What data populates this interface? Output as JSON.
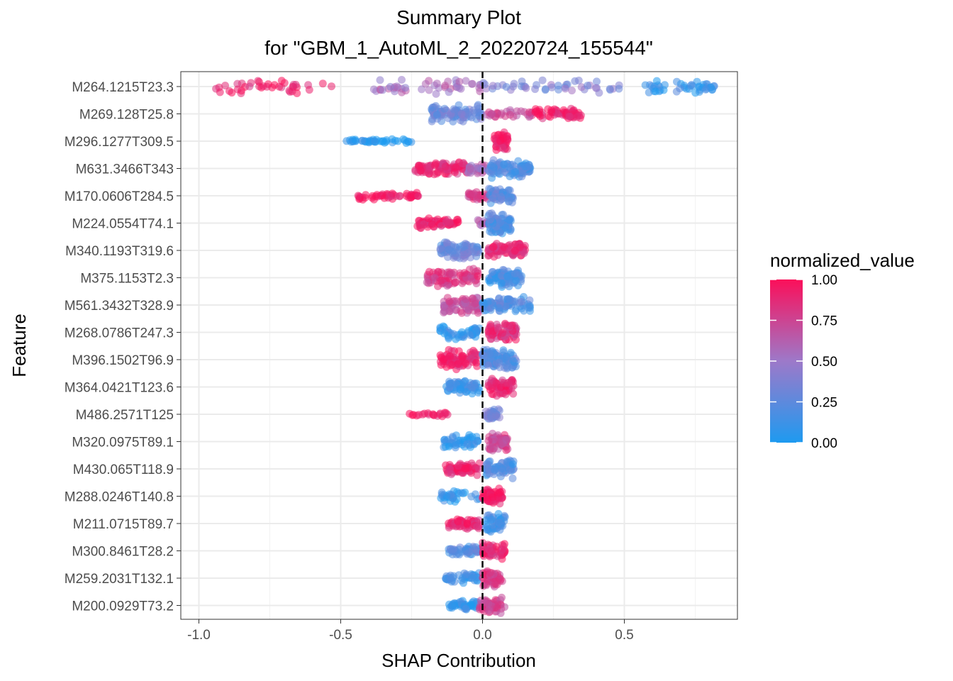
{
  "chart_data": {
    "type": "scatter",
    "subtype": "shap-summary-beeswarm",
    "title": "Summary Plot",
    "subtitle": "for \"GBM_1_AutoML_2_20220724_155544\"",
    "xlabel": "SHAP Contribution",
    "ylabel": "Feature",
    "xlim": [
      -1.05,
      0.9
    ],
    "x_ticks": [
      -1.0,
      -0.5,
      0.0,
      0.5
    ],
    "x_tick_labels": [
      "-1.0",
      "-0.5",
      "0.0",
      "0.5"
    ],
    "reference_line": 0.0,
    "grid": true,
    "features": [
      {
        "name": "M264.1215T23.3",
        "clusters": [
          [
            -0.98,
            -0.52,
            0.92,
            12,
            40
          ],
          [
            -0.4,
            0.0,
            0.55,
            12,
            45
          ],
          [
            0.0,
            0.5,
            0.4,
            10,
            45
          ],
          [
            0.55,
            0.82,
            0.1,
            10,
            45
          ]
        ]
      },
      {
        "name": "M269.128T25.8",
        "clusters": [
          [
            -0.18,
            0.0,
            0.3,
            14,
            90
          ],
          [
            0.0,
            0.18,
            0.75,
            6,
            30
          ],
          [
            0.18,
            0.35,
            0.95,
            8,
            60
          ]
        ]
      },
      {
        "name": "M296.1277T309.5",
        "clusters": [
          [
            -0.49,
            -0.25,
            0.02,
            3,
            40
          ],
          [
            0.04,
            0.09,
            0.96,
            14,
            40
          ]
        ]
      },
      {
        "name": "M631.3466T343",
        "clusters": [
          [
            -0.24,
            -0.05,
            0.88,
            10,
            90
          ],
          [
            -0.05,
            0.02,
            0.55,
            8,
            25
          ],
          [
            0.02,
            0.17,
            0.18,
            14,
            90
          ]
        ]
      },
      {
        "name": "M170.0606T284.5",
        "clusters": [
          [
            -0.44,
            -0.22,
            0.95,
            6,
            50
          ],
          [
            -0.05,
            0.02,
            0.8,
            8,
            30
          ],
          [
            0.02,
            0.11,
            0.22,
            12,
            60
          ]
        ]
      },
      {
        "name": "M224.0554T74.1",
        "clusters": [
          [
            -0.23,
            -0.08,
            0.92,
            8,
            60
          ],
          [
            -0.02,
            0.02,
            0.6,
            6,
            10
          ],
          [
            0.02,
            0.1,
            0.2,
            16,
            80
          ]
        ]
      },
      {
        "name": "M340.1193T319.6",
        "clusters": [
          [
            -0.15,
            -0.01,
            0.3,
            14,
            80
          ],
          [
            0.02,
            0.15,
            0.88,
            12,
            80
          ]
        ]
      },
      {
        "name": "M375.1153T2.3",
        "clusters": [
          [
            -0.2,
            -0.01,
            0.82,
            14,
            80
          ],
          [
            0.02,
            0.14,
            0.15,
            14,
            80
          ]
        ]
      },
      {
        "name": "M561.3432T328.9",
        "clusters": [
          [
            -0.14,
            0.0,
            0.7,
            14,
            70
          ],
          [
            0.0,
            0.17,
            0.2,
            12,
            80
          ]
        ]
      },
      {
        "name": "M268.0786T247.3",
        "clusters": [
          [
            -0.15,
            -0.01,
            0.08,
            12,
            50
          ],
          [
            0.02,
            0.12,
            0.85,
            14,
            70
          ]
        ]
      },
      {
        "name": "M396.1502T96.9",
        "clusters": [
          [
            -0.15,
            -0.01,
            0.92,
            16,
            80
          ],
          [
            0.0,
            0.12,
            0.22,
            16,
            90
          ]
        ]
      },
      {
        "name": "M364.0421T123.6",
        "clusters": [
          [
            -0.13,
            -0.01,
            0.15,
            12,
            60
          ],
          [
            0.02,
            0.11,
            0.9,
            14,
            60
          ]
        ]
      },
      {
        "name": "M486.2571T125",
        "clusters": [
          [
            -0.28,
            -0.12,
            0.97,
            4,
            20
          ],
          [
            0.01,
            0.06,
            0.3,
            10,
            40
          ]
        ]
      },
      {
        "name": "M320.0975T89.1",
        "clusters": [
          [
            -0.14,
            -0.01,
            0.05,
            10,
            45
          ],
          [
            0.02,
            0.09,
            0.78,
            14,
            60
          ]
        ]
      },
      {
        "name": "M430.065T118.9",
        "clusters": [
          [
            -0.13,
            -0.01,
            0.9,
            10,
            60
          ],
          [
            0.01,
            0.11,
            0.18,
            14,
            60
          ]
        ]
      },
      {
        "name": "M288.0246T140.8",
        "clusters": [
          [
            -0.15,
            -0.01,
            0.08,
            10,
            30
          ],
          [
            0.0,
            0.07,
            0.98,
            12,
            60
          ]
        ]
      },
      {
        "name": "M211.0715T89.7",
        "clusters": [
          [
            -0.12,
            -0.01,
            0.92,
            8,
            50
          ],
          [
            0.01,
            0.08,
            0.12,
            14,
            50
          ]
        ]
      },
      {
        "name": "M300.8461T28.2",
        "clusters": [
          [
            -0.12,
            -0.01,
            0.22,
            8,
            50
          ],
          [
            0.0,
            0.08,
            0.9,
            14,
            50
          ]
        ]
      },
      {
        "name": "M259.2031T132.1",
        "clusters": [
          [
            -0.13,
            -0.01,
            0.12,
            8,
            40
          ],
          [
            0.0,
            0.07,
            0.8,
            14,
            50
          ]
        ]
      },
      {
        "name": "M200.0929T73.2",
        "clusters": [
          [
            -0.12,
            -0.01,
            0.12,
            8,
            45
          ],
          [
            -0.01,
            0.08,
            0.75,
            12,
            55
          ]
        ]
      }
    ],
    "cluster_format": [
      "x_min",
      "x_max",
      "normalized_value",
      "jitter_px",
      "n_points"
    ],
    "point_opacity": 0.55,
    "color_scale": {
      "title": "normalized_value",
      "low_color": "#1e9af0",
      "mid_color": "#9d79c9",
      "high_color": "#fb0f5a",
      "ticks": [
        "0.00",
        "0.25",
        "0.50",
        "0.75",
        "1.00"
      ]
    }
  }
}
